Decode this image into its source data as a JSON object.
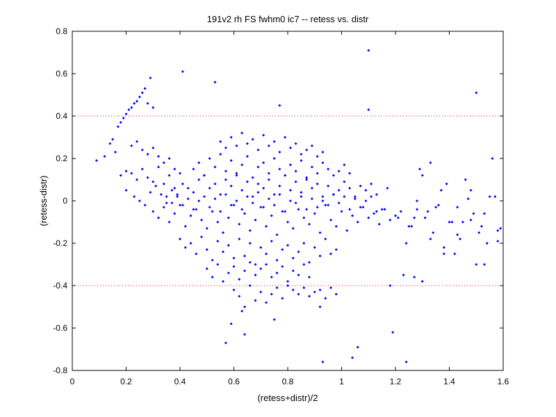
{
  "chart_data": {
    "type": "scatter",
    "title": "191v2 rh FS fwhm0 ic7 -- retess vs. distr",
    "xlabel": "(retess+distr)/2",
    "ylabel": "(retess-distr)",
    "xlim": [
      0,
      1.6
    ],
    "ylim": [
      -0.8,
      0.8
    ],
    "xticks": [
      0,
      0.2,
      0.4,
      0.6,
      0.8,
      1,
      1.2,
      1.4,
      1.6
    ],
    "xtick_labels": [
      "0",
      "0.2",
      "0.4",
      "0.6",
      "0.8",
      "1",
      "1.2",
      "1.4",
      "1.6"
    ],
    "yticks": [
      -0.8,
      -0.6,
      -0.4,
      -0.2,
      0,
      0.2,
      0.4,
      0.6,
      0.8
    ],
    "ytick_labels": [
      "-0.8",
      "-0.6",
      "-0.4",
      "-0.2",
      "0",
      "0.2",
      "0.4",
      "0.6",
      "0.8"
    ],
    "reference_lines": [
      {
        "y": 0.4,
        "style": "dotted",
        "color": "#ff0000"
      },
      {
        "y": -0.4,
        "style": "dotted",
        "color": "#ff0000"
      }
    ],
    "grid": false,
    "marker_color": "#0000ff",
    "series": [
      {
        "x": [
          0.09,
          0.12,
          0.14,
          0.15,
          0.16,
          0.17,
          0.18,
          0.19,
          0.2,
          0.21,
          0.22,
          0.23,
          0.24,
          0.25,
          0.26,
          0.27,
          0.28,
          0.29,
          0.3,
          0.22,
          0.24,
          0.26,
          0.28,
          0.3,
          0.32,
          0.34,
          0.36,
          0.38,
          0.4,
          0.18,
          0.2,
          0.22,
          0.24,
          0.26,
          0.28,
          0.3,
          0.32,
          0.34,
          0.36,
          0.38,
          0.2,
          0.23,
          0.25,
          0.27,
          0.29,
          0.31,
          0.33,
          0.35,
          0.37,
          0.39,
          0.41,
          0.43,
          0.45,
          0.47,
          0.49,
          0.51,
          0.53,
          0.55,
          0.57,
          0.59,
          0.61,
          0.63,
          0.65,
          0.67,
          0.69,
          0.71,
          0.73,
          0.75,
          0.77,
          0.79,
          0.81,
          0.83,
          0.85,
          0.87,
          0.89,
          0.91,
          0.93,
          0.95,
          0.97,
          0.99,
          1.01,
          1.03,
          1.05,
          1.07,
          1.09,
          1.11,
          1.13,
          1.15,
          1.17,
          0.3,
          0.32,
          0.34,
          0.36,
          0.38,
          0.4,
          0.42,
          0.44,
          0.46,
          0.48,
          0.5,
          0.52,
          0.54,
          0.56,
          0.58,
          0.6,
          0.62,
          0.64,
          0.66,
          0.68,
          0.7,
          0.72,
          0.74,
          0.76,
          0.78,
          0.8,
          0.82,
          0.84,
          0.86,
          0.88,
          0.9,
          0.92,
          0.94,
          0.96,
          0.98,
          1.0,
          1.02,
          1.04,
          1.06,
          1.08,
          1.1,
          1.12,
          1.14,
          1.16,
          1.18,
          1.2,
          0.35,
          0.37,
          0.39,
          0.41,
          0.43,
          0.45,
          0.47,
          0.49,
          0.51,
          0.53,
          0.55,
          0.57,
          0.59,
          0.61,
          0.63,
          0.65,
          0.67,
          0.69,
          0.71,
          0.73,
          0.75,
          0.77,
          0.79,
          0.81,
          0.83,
          0.85,
          0.87,
          0.89,
          0.91,
          0.93,
          0.95,
          0.97,
          0.99,
          1.01,
          1.03,
          1.05,
          1.07,
          1.09,
          1.11,
          1.13,
          0.4,
          0.42,
          0.44,
          0.46,
          0.48,
          0.5,
          0.52,
          0.54,
          0.56,
          0.58,
          0.6,
          0.62,
          0.64,
          0.66,
          0.68,
          0.7,
          0.72,
          0.74,
          0.76,
          0.78,
          0.8,
          0.82,
          0.84,
          0.86,
          0.88,
          0.9,
          0.92,
          0.94,
          0.96,
          0.98,
          0.45,
          0.47,
          0.49,
          0.51,
          0.53,
          0.55,
          0.57,
          0.59,
          0.61,
          0.63,
          0.65,
          0.67,
          0.69,
          0.71,
          0.73,
          0.75,
          0.77,
          0.79,
          0.81,
          0.83,
          0.85,
          0.87,
          0.89,
          0.91,
          0.93,
          0.95,
          0.97,
          0.99,
          1.01,
          1.03,
          0.5,
          0.52,
          0.54,
          0.56,
          0.58,
          0.6,
          0.62,
          0.64,
          0.66,
          0.68,
          0.7,
          0.72,
          0.74,
          0.76,
          0.78,
          0.8,
          0.82,
          0.84,
          0.86,
          0.88,
          0.55,
          0.57,
          0.59,
          0.61,
          0.63,
          0.65,
          0.67,
          0.69,
          0.71,
          0.73,
          0.75,
          0.77,
          0.79,
          0.81,
          0.83,
          0.85,
          0.87,
          0.89,
          0.91,
          0.93,
          0.6,
          0.62,
          0.64,
          0.66,
          0.68,
          0.7,
          0.72,
          0.74,
          0.76,
          0.78,
          0.8,
          0.82,
          0.84,
          0.86,
          0.88,
          0.9,
          0.92,
          0.94,
          0.96,
          0.98,
          1.22,
          1.25,
          1.28,
          1.31,
          1.34,
          1.37,
          1.4,
          1.43,
          1.46,
          1.49,
          1.52,
          1.55,
          1.58,
          1.24,
          1.27,
          1.3,
          1.33,
          1.36,
          1.39,
          1.42,
          1.45,
          1.48,
          1.51,
          1.54,
          1.57,
          1.21,
          1.26,
          1.29,
          1.32,
          1.35,
          1.38,
          1.41,
          1.44,
          1.47,
          1.5,
          1.53,
          1.56,
          1.59,
          1.23,
          1.28,
          1.33,
          1.38,
          1.43,
          1.48,
          1.53,
          1.58,
          0.41,
          1.1,
          1.5,
          1.1,
          0.53,
          0.77,
          0.93,
          0.92,
          1.04,
          1.24,
          1.19,
          1.06,
          0.57,
          0.64,
          0.75,
          0.63,
          0.59,
          1.18,
          1.27,
          1.3
        ],
        "y": [
          0.19,
          0.21,
          0.27,
          0.29,
          0.23,
          0.35,
          0.37,
          0.39,
          0.41,
          0.43,
          0.44,
          0.46,
          0.47,
          0.49,
          0.51,
          0.53,
          0.46,
          0.58,
          0.44,
          0.26,
          0.28,
          0.24,
          0.22,
          0.25,
          0.21,
          0.18,
          0.2,
          0.15,
          0.13,
          0.12,
          0.14,
          0.13,
          0.1,
          0.15,
          0.11,
          0.09,
          0.16,
          0.08,
          0.12,
          0.06,
          0.05,
          0.02,
          0.0,
          -0.02,
          0.04,
          0.07,
          0.03,
          -0.01,
          0.05,
          0.02,
          0.08,
          0.06,
          0.04,
          0.1,
          0.12,
          0.06,
          0.08,
          0.03,
          0.1,
          0.07,
          0.12,
          0.05,
          0.09,
          0.02,
          0.08,
          0.06,
          0.1,
          0.03,
          0.07,
          0.12,
          0.05,
          0.09,
          0.04,
          0.1,
          0.06,
          0.08,
          0.02,
          0.07,
          0.03,
          0.05,
          0.09,
          0.06,
          0.02,
          0.07,
          0.05,
          0.08,
          0.03,
          -0.04,
          0.06,
          -0.05,
          -0.08,
          -0.03,
          -0.1,
          -0.06,
          -0.02,
          -0.12,
          -0.07,
          -0.04,
          -0.09,
          -0.13,
          -0.05,
          -0.1,
          -0.15,
          -0.08,
          -0.02,
          -0.11,
          -0.06,
          -0.14,
          -0.09,
          -0.03,
          -0.12,
          -0.07,
          -0.16,
          -0.05,
          -0.1,
          -0.13,
          -0.04,
          -0.08,
          -0.11,
          -0.06,
          -0.15,
          -0.02,
          -0.09,
          -0.12,
          -0.05,
          -0.14,
          -0.07,
          -0.1,
          -0.03,
          -0.08,
          -0.06,
          -0.11,
          -0.04,
          -0.09,
          -0.07,
          0.02,
          -0.01,
          0.03,
          -0.02,
          0.01,
          -0.04,
          0.0,
          0.02,
          -0.03,
          0.01,
          -0.05,
          0.03,
          -0.02,
          0.0,
          -0.04,
          0.02,
          -0.01,
          0.04,
          -0.03,
          0.01,
          -0.02,
          0.03,
          -0.05,
          0.0,
          -0.01,
          0.02,
          -0.04,
          0.01,
          -0.03,
          0.0,
          -0.02,
          0.03,
          -0.01,
          0.02,
          -0.04,
          0.01,
          -0.03,
          0.0,
          0.02,
          -0.05,
          -0.18,
          -0.22,
          -0.2,
          -0.25,
          -0.17,
          -0.23,
          -0.28,
          -0.19,
          -0.24,
          -0.21,
          -0.27,
          -0.18,
          -0.26,
          -0.2,
          -0.3,
          -0.22,
          -0.25,
          -0.19,
          -0.28,
          -0.23,
          -0.21,
          -0.27,
          -0.24,
          -0.2,
          -0.29,
          -0.22,
          -0.26,
          -0.18,
          -0.25,
          -0.23,
          0.15,
          0.18,
          0.12,
          0.2,
          0.16,
          0.22,
          0.14,
          0.19,
          0.13,
          0.17,
          0.21,
          0.11,
          0.16,
          0.18,
          0.13,
          0.2,
          0.15,
          0.12,
          0.17,
          0.14,
          0.19,
          0.11,
          0.16,
          0.13,
          0.18,
          0.15,
          0.12,
          0.14,
          0.17,
          0.13,
          -0.32,
          -0.36,
          -0.3,
          -0.38,
          -0.34,
          -0.31,
          -0.37,
          -0.33,
          -0.29,
          -0.35,
          -0.32,
          -0.3,
          -0.36,
          -0.34,
          -0.31,
          -0.38,
          -0.33,
          -0.35,
          -0.3,
          -0.36,
          0.28,
          0.25,
          0.3,
          0.26,
          0.32,
          0.27,
          0.29,
          0.24,
          0.31,
          0.26,
          0.28,
          0.23,
          0.3,
          0.25,
          0.27,
          0.22,
          0.24,
          0.26,
          0.21,
          0.23,
          -0.42,
          -0.45,
          -0.5,
          -0.4,
          -0.47,
          -0.43,
          -0.48,
          -0.44,
          -0.41,
          -0.46,
          -0.4,
          -0.42,
          -0.44,
          -0.41,
          -0.45,
          -0.43,
          -0.42,
          -0.46,
          -0.41,
          -0.44,
          -0.05,
          -0.12,
          0.0,
          -0.08,
          -0.15,
          0.05,
          -0.1,
          -0.03,
          0.1,
          -0.06,
          -0.12,
          0.02,
          -0.14,
          -0.2,
          -0.08,
          0.12,
          -0.18,
          -0.02,
          0.08,
          -0.25,
          -0.1,
          0.05,
          -0.15,
          -0.2,
          0.02,
          -0.08,
          -0.12,
          0.15,
          -0.05,
          -0.03,
          -0.22,
          -0.1,
          -0.18,
          0.01,
          -0.3,
          -0.06,
          0.2,
          -0.13,
          -0.35,
          -0.04,
          0.18,
          -0.25,
          -0.16,
          -0.09,
          -0.3,
          -0.19,
          0.61,
          0.71,
          0.51,
          0.43,
          0.56,
          0.45,
          -0.76,
          -0.5,
          -0.74,
          -0.76,
          -0.62,
          -0.69,
          -0.67,
          -0.63,
          -0.56,
          -0.52,
          -0.58,
          -0.4,
          -0.36,
          -0.38
        ]
      }
    ]
  }
}
